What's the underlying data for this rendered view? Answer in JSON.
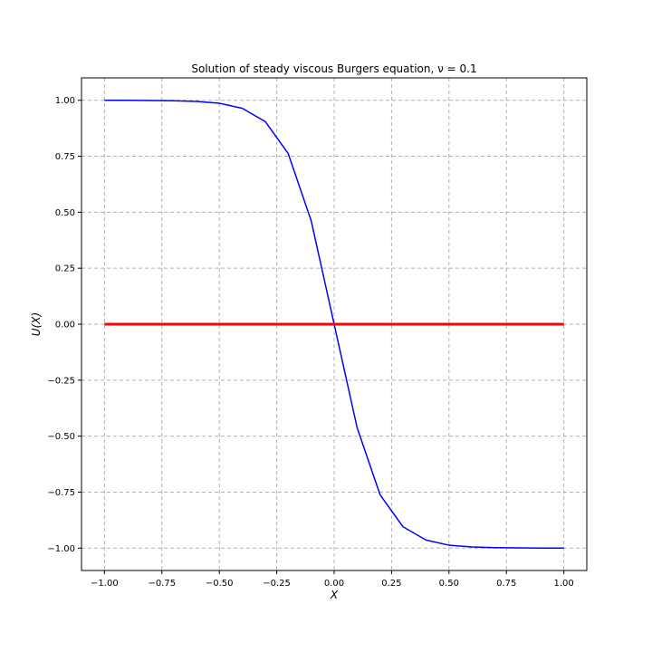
{
  "chart_data": {
    "type": "line",
    "title": "Solution of steady viscous Burgers equation, ν = 0.1",
    "xlabel": "X",
    "ylabel": "U(X)",
    "xlim": [
      -1.1,
      1.1
    ],
    "ylim": [
      -1.1,
      1.1
    ],
    "xticks": [
      -1.0,
      -0.75,
      -0.5,
      -0.25,
      0.0,
      0.25,
      0.5,
      0.75,
      1.0
    ],
    "xtick_labels": [
      "−1.00",
      "−0.75",
      "−0.50",
      "−0.25",
      "0.00",
      "0.25",
      "0.50",
      "0.75",
      "1.00"
    ],
    "yticks": [
      -1.0,
      -0.75,
      -0.5,
      -0.25,
      0.0,
      0.25,
      0.5,
      0.75,
      1.0
    ],
    "ytick_labels": [
      "−1.00",
      "−0.75",
      "−0.50",
      "−0.25",
      "0.00",
      "0.25",
      "0.50",
      "0.75",
      "1.00"
    ],
    "grid": true,
    "series": [
      {
        "color": "#0000ff",
        "x": [
          -1.0,
          -0.9,
          -0.8,
          -0.7,
          -0.6,
          -0.5,
          -0.4,
          -0.3,
          -0.2,
          -0.1,
          0.0,
          0.1,
          0.2,
          0.3,
          0.4,
          0.5,
          0.6,
          0.7,
          0.8,
          0.9,
          1.0
        ],
        "y": [
          1.0,
          1.0,
          0.999,
          0.998,
          0.995,
          0.987,
          0.964,
          0.905,
          0.762,
          0.462,
          0.0,
          -0.462,
          -0.762,
          -0.905,
          -0.964,
          -0.987,
          -0.995,
          -0.998,
          -0.999,
          -1.0,
          -1.0
        ]
      },
      {
        "color": "#ff0000",
        "x": [
          -1.0,
          1.0
        ],
        "y": [
          0.0,
          0.0
        ]
      }
    ]
  }
}
